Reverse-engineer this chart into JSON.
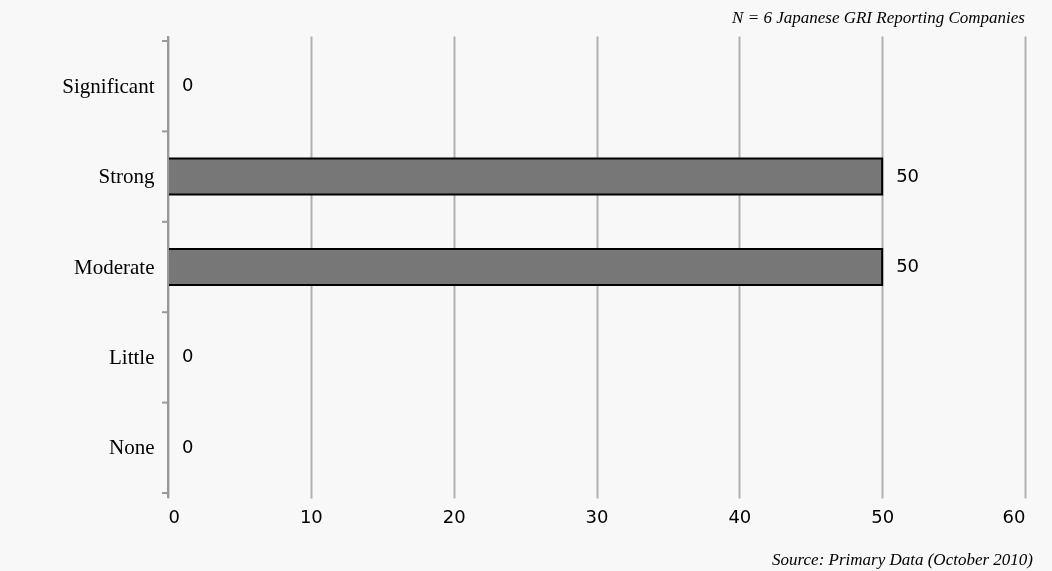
{
  "chart_data": {
    "type": "bar",
    "orientation": "horizontal",
    "categories": [
      "Significant",
      "Strong",
      "Moderate",
      "Little",
      "None"
    ],
    "values": [
      0,
      50,
      50,
      0,
      0
    ],
    "color": "#777777",
    "xlim": [
      0,
      60
    ],
    "xticks": [
      0,
      10,
      20,
      30,
      40,
      50,
      60
    ],
    "grid": "x",
    "data_labels": true,
    "annotations": [
      "N = 6 Japanese GRI Reporting Companies",
      "Source: Primary Data (October 2010)"
    ]
  }
}
